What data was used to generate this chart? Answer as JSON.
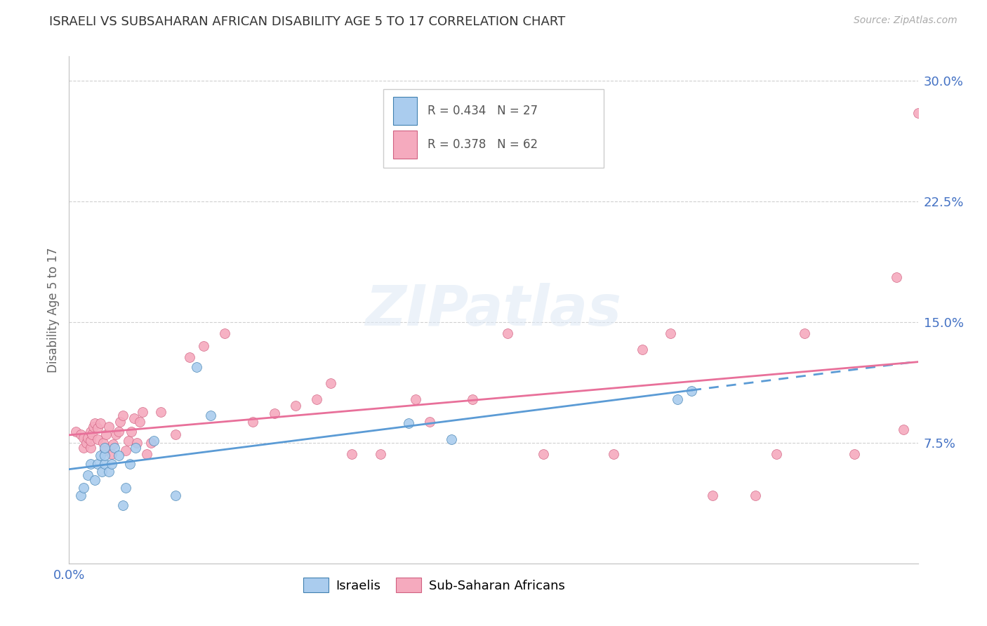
{
  "title": "ISRAELI VS SUBSAHARAN AFRICAN DISABILITY AGE 5 TO 17 CORRELATION CHART",
  "source": "Source: ZipAtlas.com",
  "ylabel": "Disability Age 5 to 17",
  "xlim": [
    0.0,
    0.6
  ],
  "ylim": [
    0.0,
    0.315
  ],
  "xticks": [
    0.0,
    0.06,
    0.12,
    0.18,
    0.24,
    0.3,
    0.36,
    0.42,
    0.48,
    0.54,
    0.6
  ],
  "xtick_labels_show": {
    "0.0": "0.0%"
  },
  "yticks": [
    0.0,
    0.075,
    0.15,
    0.225,
    0.3
  ],
  "ytick_labels": [
    "",
    "7.5%",
    "15.0%",
    "22.5%",
    "30.0%"
  ],
  "legend_labels": [
    "Israelis",
    "Sub-Saharan Africans"
  ],
  "legend_row1": "R = 0.434   N = 27",
  "legend_row2": "R = 0.378   N = 62",
  "israeli_color": "#aaccee",
  "subsaharan_color": "#f5aabe",
  "trend_israeli_color": "#5b9bd5",
  "trend_subsaharan_color": "#e8709a",
  "watermark": "ZIPatlas",
  "israeli_x": [
    0.008,
    0.01,
    0.013,
    0.015,
    0.018,
    0.02,
    0.022,
    0.023,
    0.025,
    0.025,
    0.025,
    0.028,
    0.03,
    0.032,
    0.035,
    0.038,
    0.04,
    0.043,
    0.047,
    0.06,
    0.075,
    0.09,
    0.1,
    0.24,
    0.27,
    0.43,
    0.44
  ],
  "israeli_y": [
    0.042,
    0.047,
    0.055,
    0.062,
    0.052,
    0.062,
    0.067,
    0.057,
    0.062,
    0.067,
    0.072,
    0.057,
    0.062,
    0.072,
    0.067,
    0.036,
    0.047,
    0.062,
    0.072,
    0.076,
    0.042,
    0.122,
    0.092,
    0.087,
    0.077,
    0.102,
    0.107
  ],
  "subsaharan_x": [
    0.005,
    0.008,
    0.01,
    0.01,
    0.012,
    0.013,
    0.015,
    0.015,
    0.015,
    0.016,
    0.017,
    0.018,
    0.02,
    0.02,
    0.022,
    0.024,
    0.025,
    0.026,
    0.028,
    0.03,
    0.031,
    0.033,
    0.035,
    0.036,
    0.038,
    0.04,
    0.042,
    0.044,
    0.046,
    0.048,
    0.05,
    0.052,
    0.055,
    0.058,
    0.065,
    0.075,
    0.085,
    0.095,
    0.11,
    0.13,
    0.145,
    0.16,
    0.175,
    0.185,
    0.2,
    0.22,
    0.245,
    0.255,
    0.285,
    0.31,
    0.335,
    0.385,
    0.405,
    0.425,
    0.455,
    0.485,
    0.5,
    0.52,
    0.555,
    0.585,
    0.59,
    0.6
  ],
  "subsaharan_y": [
    0.082,
    0.08,
    0.072,
    0.078,
    0.075,
    0.078,
    0.072,
    0.076,
    0.082,
    0.08,
    0.085,
    0.087,
    0.077,
    0.084,
    0.087,
    0.075,
    0.07,
    0.08,
    0.085,
    0.068,
    0.074,
    0.08,
    0.082,
    0.088,
    0.092,
    0.07,
    0.076,
    0.082,
    0.09,
    0.075,
    0.088,
    0.094,
    0.068,
    0.075,
    0.094,
    0.08,
    0.128,
    0.135,
    0.143,
    0.088,
    0.093,
    0.098,
    0.102,
    0.112,
    0.068,
    0.068,
    0.102,
    0.088,
    0.102,
    0.143,
    0.068,
    0.068,
    0.133,
    0.143,
    0.042,
    0.042,
    0.068,
    0.143,
    0.068,
    0.178,
    0.083,
    0.28
  ]
}
